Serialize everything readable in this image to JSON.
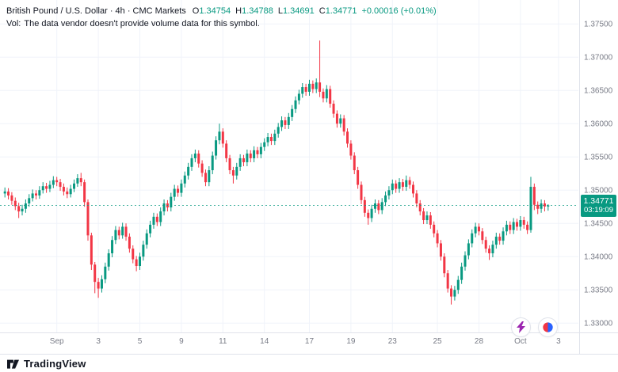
{
  "header": {
    "title_line": "British Pound / U.S. Dollar · 4h · CMC Markets",
    "ohlc": {
      "o_label": "O",
      "o": "1.34754",
      "h_label": "H",
      "h": "1.34788",
      "l_label": "L",
      "l": "1.34691",
      "c_label": "C",
      "c": "1.34771",
      "change": "+0.00016 (+0.01%)"
    },
    "vol_label": "Vol:",
    "vol_message": "The data vendor doesn't provide volume data for this symbol."
  },
  "price_scale": {
    "current": {
      "price": "1.34771",
      "countdown": "03:19:09"
    }
  },
  "footer": {
    "logo_text": "TradingView"
  },
  "colors": {
    "up": "#089981",
    "down": "#f23645",
    "text": "#131722",
    "axis_text": "#787b86",
    "grid": "#f0f3fa",
    "border": "#e0e3eb",
    "lightning": "#9c27b0",
    "ball_red": "#f23645",
    "ball_blue": "#2962ff"
  },
  "chart_data": {
    "type": "candlestick",
    "title": "British Pound / U.S. Dollar",
    "interval": "4h",
    "feed": "CMC Markets",
    "ylim": [
      1.3286,
      1.3786
    ],
    "price_line": 1.34771,
    "y_ticks": [
      "1.37500",
      "1.37000",
      "1.36500",
      "1.36000",
      "1.35500",
      "1.35000",
      "1.34500",
      "1.34000",
      "1.33500",
      "1.33000"
    ],
    "x_ticks": [
      {
        "label": "Sep",
        "i": 15
      },
      {
        "label": "3",
        "i": 27
      },
      {
        "label": "5",
        "i": 39
      },
      {
        "label": "9",
        "i": 51
      },
      {
        "label": "11",
        "i": 63
      },
      {
        "label": "14",
        "i": 75
      },
      {
        "label": "17",
        "i": 88
      },
      {
        "label": "19",
        "i": 100
      },
      {
        "label": "23",
        "i": 112
      },
      {
        "label": "25",
        "i": 125
      },
      {
        "label": "28",
        "i": 137
      },
      {
        "label": "Oct",
        "i": 149
      },
      {
        "label": "3",
        "i": 160
      }
    ],
    "candles": [
      [
        1.3495,
        1.3504,
        1.3489,
        1.3498
      ],
      [
        1.3498,
        1.3503,
        1.3486,
        1.3492
      ],
      [
        1.3492,
        1.3497,
        1.3478,
        1.3484
      ],
      [
        1.3484,
        1.3489,
        1.347,
        1.3476
      ],
      [
        1.3476,
        1.3481,
        1.3458,
        1.3468
      ],
      [
        1.3468,
        1.3478,
        1.3462,
        1.3472
      ],
      [
        1.3472,
        1.3486,
        1.3466,
        1.348
      ],
      [
        1.348,
        1.3494,
        1.3475,
        1.3488
      ],
      [
        1.3488,
        1.3501,
        1.3483,
        1.3495
      ],
      [
        1.3495,
        1.35,
        1.3486,
        1.3492
      ],
      [
        1.3492,
        1.3506,
        1.3487,
        1.35
      ],
      [
        1.35,
        1.3512,
        1.3495,
        1.3506
      ],
      [
        1.3506,
        1.3511,
        1.3496,
        1.3502
      ],
      [
        1.3502,
        1.3514,
        1.3497,
        1.3508
      ],
      [
        1.3508,
        1.3521,
        1.3503,
        1.3515
      ],
      [
        1.3515,
        1.352,
        1.3506,
        1.3512
      ],
      [
        1.3512,
        1.3517,
        1.3499,
        1.3505
      ],
      [
        1.3505,
        1.351,
        1.3492,
        1.3498
      ],
      [
        1.3498,
        1.3504,
        1.3488,
        1.3494
      ],
      [
        1.3494,
        1.3508,
        1.3489,
        1.3502
      ],
      [
        1.3502,
        1.3516,
        1.3497,
        1.351
      ],
      [
        1.351,
        1.3524,
        1.3505,
        1.3518
      ],
      [
        1.3518,
        1.3526,
        1.3506,
        1.3512
      ],
      [
        1.3512,
        1.3516,
        1.3475,
        1.3482
      ],
      [
        1.3482,
        1.3486,
        1.3424,
        1.3432
      ],
      [
        1.3432,
        1.3436,
        1.338,
        1.3388
      ],
      [
        1.3388,
        1.3392,
        1.3345,
        1.3362
      ],
      [
        1.3362,
        1.3368,
        1.3338,
        1.3352
      ],
      [
        1.3352,
        1.3372,
        1.3346,
        1.3366
      ],
      [
        1.3366,
        1.3391,
        1.336,
        1.3385
      ],
      [
        1.3385,
        1.3411,
        1.3379,
        1.3405
      ],
      [
        1.3405,
        1.3431,
        1.3399,
        1.3425
      ],
      [
        1.3425,
        1.3446,
        1.3419,
        1.344
      ],
      [
        1.344,
        1.3445,
        1.3426,
        1.3432
      ],
      [
        1.3432,
        1.3451,
        1.3427,
        1.3445
      ],
      [
        1.3445,
        1.345,
        1.3424,
        1.343
      ],
      [
        1.343,
        1.3435,
        1.3406,
        1.3412
      ],
      [
        1.3412,
        1.3417,
        1.339,
        1.3396
      ],
      [
        1.3396,
        1.3401,
        1.3378,
        1.3386
      ],
      [
        1.3386,
        1.3406,
        1.338,
        1.34
      ],
      [
        1.34,
        1.3424,
        1.3394,
        1.3418
      ],
      [
        1.3418,
        1.3441,
        1.3412,
        1.3435
      ],
      [
        1.3435,
        1.3454,
        1.3429,
        1.3448
      ],
      [
        1.3448,
        1.3466,
        1.3442,
        1.346
      ],
      [
        1.346,
        1.3465,
        1.3446,
        1.3452
      ],
      [
        1.3452,
        1.3474,
        1.3446,
        1.3468
      ],
      [
        1.3468,
        1.3486,
        1.3462,
        1.348
      ],
      [
        1.348,
        1.3485,
        1.3468,
        1.3474
      ],
      [
        1.3474,
        1.3496,
        1.3468,
        1.349
      ],
      [
        1.349,
        1.3508,
        1.3484,
        1.3502
      ],
      [
        1.3502,
        1.3507,
        1.349,
        1.3496
      ],
      [
        1.3496,
        1.3516,
        1.349,
        1.351
      ],
      [
        1.351,
        1.3528,
        1.3504,
        1.3522
      ],
      [
        1.3522,
        1.3541,
        1.3516,
        1.3535
      ],
      [
        1.3535,
        1.3554,
        1.3529,
        1.3548
      ],
      [
        1.3548,
        1.3561,
        1.3542,
        1.3555
      ],
      [
        1.3555,
        1.356,
        1.3534,
        1.354
      ],
      [
        1.354,
        1.3545,
        1.352,
        1.3526
      ],
      [
        1.3526,
        1.3531,
        1.3506,
        1.3512
      ],
      [
        1.3512,
        1.3536,
        1.3506,
        1.353
      ],
      [
        1.353,
        1.3558,
        1.3524,
        1.3552
      ],
      [
        1.3552,
        1.3581,
        1.3546,
        1.3575
      ],
      [
        1.3575,
        1.36,
        1.3569,
        1.3588
      ],
      [
        1.3588,
        1.3593,
        1.3564,
        1.357
      ],
      [
        1.357,
        1.3575,
        1.3542,
        1.3548
      ],
      [
        1.3548,
        1.3553,
        1.3524,
        1.353
      ],
      [
        1.353,
        1.3535,
        1.351,
        1.3522
      ],
      [
        1.3522,
        1.3541,
        1.3516,
        1.3535
      ],
      [
        1.3535,
        1.3554,
        1.3529,
        1.3548
      ],
      [
        1.3548,
        1.3553,
        1.3536,
        1.3542
      ],
      [
        1.3542,
        1.3561,
        1.3536,
        1.3555
      ],
      [
        1.3555,
        1.356,
        1.3542,
        1.3548
      ],
      [
        1.3548,
        1.3566,
        1.3542,
        1.356
      ],
      [
        1.356,
        1.3565,
        1.3548,
        1.3554
      ],
      [
        1.3554,
        1.3571,
        1.3548,
        1.3565
      ],
      [
        1.3565,
        1.3578,
        1.3559,
        1.3572
      ],
      [
        1.3572,
        1.3586,
        1.3566,
        1.358
      ],
      [
        1.358,
        1.3585,
        1.3568,
        1.3574
      ],
      [
        1.3574,
        1.3591,
        1.3568,
        1.3585
      ],
      [
        1.3585,
        1.3601,
        1.3579,
        1.3595
      ],
      [
        1.3595,
        1.3611,
        1.3589,
        1.3605
      ],
      [
        1.3605,
        1.361,
        1.3592,
        1.3598
      ],
      [
        1.3598,
        1.3616,
        1.3592,
        1.361
      ],
      [
        1.361,
        1.3628,
        1.3604,
        1.3622
      ],
      [
        1.3622,
        1.3641,
        1.3616,
        1.3635
      ],
      [
        1.3635,
        1.3651,
        1.3629,
        1.3645
      ],
      [
        1.3645,
        1.3661,
        1.3639,
        1.3655
      ],
      [
        1.3655,
        1.366,
        1.3642,
        1.3648
      ],
      [
        1.3648,
        1.3666,
        1.3642,
        1.366
      ],
      [
        1.366,
        1.3665,
        1.3646,
        1.3652
      ],
      [
        1.3652,
        1.3668,
        1.3646,
        1.3662
      ],
      [
        1.3662,
        1.3725,
        1.364,
        1.3648
      ],
      [
        1.3648,
        1.3653,
        1.3632,
        1.3638
      ],
      [
        1.3638,
        1.3658,
        1.3632,
        1.3652
      ],
      [
        1.3652,
        1.3657,
        1.3624,
        1.363
      ],
      [
        1.363,
        1.3635,
        1.3609,
        1.3615
      ],
      [
        1.3615,
        1.362,
        1.3594,
        1.36
      ],
      [
        1.36,
        1.3614,
        1.3594,
        1.3608
      ],
      [
        1.3608,
        1.3613,
        1.3582,
        1.3588
      ],
      [
        1.3588,
        1.3593,
        1.3564,
        1.357
      ],
      [
        1.357,
        1.3575,
        1.3546,
        1.3552
      ],
      [
        1.3552,
        1.3557,
        1.3524,
        1.353
      ],
      [
        1.353,
        1.3535,
        1.3502,
        1.3508
      ],
      [
        1.3508,
        1.3513,
        1.3479,
        1.3485
      ],
      [
        1.3485,
        1.349,
        1.346,
        1.3466
      ],
      [
        1.3466,
        1.3471,
        1.3448,
        1.3458
      ],
      [
        1.3458,
        1.3478,
        1.3452,
        1.3472
      ],
      [
        1.3472,
        1.3486,
        1.3466,
        1.348
      ],
      [
        1.348,
        1.3485,
        1.3464,
        1.347
      ],
      [
        1.347,
        1.3488,
        1.3464,
        1.3482
      ],
      [
        1.3482,
        1.3498,
        1.3476,
        1.3492
      ],
      [
        1.3492,
        1.3506,
        1.3486,
        1.35
      ],
      [
        1.35,
        1.3516,
        1.3494,
        1.351
      ],
      [
        1.351,
        1.3515,
        1.3496,
        1.3502
      ],
      [
        1.3502,
        1.3518,
        1.3496,
        1.3512
      ],
      [
        1.3512,
        1.3517,
        1.3499,
        1.3505
      ],
      [
        1.3505,
        1.3522,
        1.3499,
        1.3515
      ],
      [
        1.3515,
        1.352,
        1.3502,
        1.3508
      ],
      [
        1.3508,
        1.3513,
        1.3489,
        1.3495
      ],
      [
        1.3495,
        1.35,
        1.3474,
        1.348
      ],
      [
        1.348,
        1.3485,
        1.3462,
        1.3468
      ],
      [
        1.3468,
        1.3473,
        1.3449,
        1.3455
      ],
      [
        1.3455,
        1.3468,
        1.3449,
        1.3462
      ],
      [
        1.3462,
        1.3467,
        1.3442,
        1.3448
      ],
      [
        1.3448,
        1.3453,
        1.3429,
        1.3435
      ],
      [
        1.3435,
        1.344,
        1.3414,
        1.342
      ],
      [
        1.342,
        1.3425,
        1.3394,
        1.34
      ],
      [
        1.34,
        1.3405,
        1.3369,
        1.3375
      ],
      [
        1.3375,
        1.338,
        1.3346,
        1.3352
      ],
      [
        1.3352,
        1.3357,
        1.3328,
        1.334
      ],
      [
        1.334,
        1.3356,
        1.3334,
        1.335
      ],
      [
        1.335,
        1.3371,
        1.3344,
        1.3365
      ],
      [
        1.3365,
        1.3391,
        1.3359,
        1.3385
      ],
      [
        1.3385,
        1.3408,
        1.3379,
        1.3402
      ],
      [
        1.3402,
        1.3426,
        1.3396,
        1.342
      ],
      [
        1.342,
        1.3441,
        1.3414,
        1.3435
      ],
      [
        1.3435,
        1.3451,
        1.3429,
        1.3445
      ],
      [
        1.3445,
        1.345,
        1.3432,
        1.3438
      ],
      [
        1.3438,
        1.3443,
        1.3419,
        1.3425
      ],
      [
        1.3425,
        1.343,
        1.3406,
        1.3412
      ],
      [
        1.3412,
        1.3417,
        1.3395,
        1.3405
      ],
      [
        1.3405,
        1.3424,
        1.3399,
        1.3418
      ],
      [
        1.3418,
        1.3436,
        1.3412,
        1.343
      ],
      [
        1.343,
        1.3435,
        1.3418,
        1.3424
      ],
      [
        1.3424,
        1.3444,
        1.3418,
        1.3438
      ],
      [
        1.3438,
        1.3454,
        1.3432,
        1.3448
      ],
      [
        1.3448,
        1.3453,
        1.3434,
        1.344
      ],
      [
        1.344,
        1.3458,
        1.3434,
        1.3452
      ],
      [
        1.3452,
        1.3457,
        1.3439,
        1.3445
      ],
      [
        1.3445,
        1.3461,
        1.3439,
        1.3455
      ],
      [
        1.3455,
        1.346,
        1.3442,
        1.3448
      ],
      [
        1.3448,
        1.3453,
        1.3434,
        1.344
      ],
      [
        1.344,
        1.352,
        1.3436,
        1.3505
      ],
      [
        1.3505,
        1.351,
        1.347,
        1.3478
      ],
      [
        1.3478,
        1.3483,
        1.3464,
        1.3472
      ],
      [
        1.3472,
        1.3486,
        1.3466,
        1.348
      ],
      [
        1.348,
        1.3485,
        1.3468,
        1.34754
      ],
      [
        1.34754,
        1.34788,
        1.34691,
        1.34771
      ]
    ]
  }
}
